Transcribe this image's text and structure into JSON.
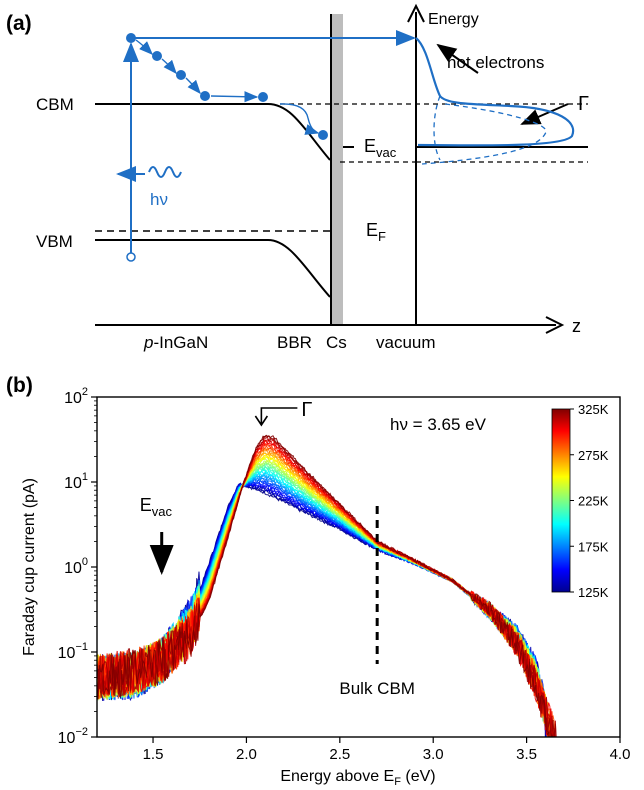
{
  "panel_a": {
    "panel_label": "(a)",
    "labels": {
      "energy": "Energy",
      "hot_electrons": "hot electrons",
      "gamma": "Γ",
      "cbm": "CBM",
      "vbm": "VBM",
      "hv": "hν",
      "evac_main": "E",
      "evac_sub": "vac",
      "ef_main": "E",
      "ef_sub": "F",
      "p_prefix": "p",
      "ingan": "-InGaN",
      "bbr": "BBR",
      "cs": "Cs",
      "vacuum": "vacuum",
      "z_axis": "z"
    },
    "colors": {
      "electron": "#1f6fc5",
      "ink": "#000000",
      "cs_layer": "#bdbdbd"
    }
  },
  "chart_data": {
    "type": "line",
    "panel_label": "(b)",
    "xlabel_main": "Energy above E",
    "xlabel_sub": "F",
    "xlabel_tail": " (eV)",
    "ylabel": "Faraday cup current (pA)",
    "y_scale": "log",
    "xlim": [
      1.2,
      4.0
    ],
    "ylim": [
      0.01,
      100
    ],
    "x_ticks": [
      1.5,
      2.0,
      2.5,
      3.0,
      3.5,
      4.0
    ],
    "x_tick_labels": [
      "1.5",
      "2.0",
      "2.5",
      "3.0",
      "3.5",
      "4.0"
    ],
    "y_ticks": [
      0.01,
      0.1,
      1,
      10,
      100
    ],
    "y_tick_labels": [
      {
        "base": "10",
        "exp": "−2"
      },
      {
        "base": "10",
        "exp": "−1"
      },
      {
        "base": "10",
        "exp": "0"
      },
      {
        "base": "10",
        "exp": "1"
      },
      {
        "base": "10",
        "exp": "2"
      }
    ],
    "annotation_photon": "hν = 3.65 eV",
    "annotation_gamma": "Γ",
    "annotation_evac_main": "E",
    "annotation_evac_sub": "vac",
    "annotation_bulk_cbm": "Bulk CBM",
    "bulk_cbm_x": 2.7,
    "evac_arrow_x": 1.6,
    "gamma_arrow_x": 2.08,
    "colormap": "jet",
    "colorbar": {
      "labels": [
        "325K",
        "275K",
        "225K",
        "175K",
        "125K"
      ],
      "range": [
        125,
        325
      ]
    },
    "series_temperature_range": [
      125,
      325
    ],
    "series_count": 41,
    "cold_curve": {
      "temperature": 125,
      "points": [
        [
          1.2,
          0.05
        ],
        [
          1.4,
          0.05
        ],
        [
          1.55,
          0.08
        ],
        [
          1.7,
          0.25
        ],
        [
          1.82,
          1.5
        ],
        [
          1.9,
          5
        ],
        [
          1.96,
          9.5
        ],
        [
          2.0,
          9
        ],
        [
          2.1,
          7.5
        ],
        [
          2.3,
          4.5
        ],
        [
          2.5,
          2.8
        ],
        [
          2.7,
          1.6
        ],
        [
          2.9,
          1.1
        ],
        [
          3.1,
          0.7
        ],
        [
          3.3,
          0.3
        ],
        [
          3.45,
          0.15
        ],
        [
          3.55,
          0.06
        ],
        [
          3.6,
          0.02
        ],
        [
          3.62,
          0.01
        ]
      ]
    },
    "hot_curve": {
      "temperature": 325,
      "points": [
        [
          1.2,
          0.05
        ],
        [
          1.4,
          0.06
        ],
        [
          1.55,
          0.08
        ],
        [
          1.7,
          0.15
        ],
        [
          1.8,
          0.4
        ],
        [
          1.9,
          2.2
        ],
        [
          1.98,
          9
        ],
        [
          2.05,
          25
        ],
        [
          2.1,
          36
        ],
        [
          2.15,
          33
        ],
        [
          2.3,
          15
        ],
        [
          2.5,
          5.5
        ],
        [
          2.7,
          2.0
        ],
        [
          2.9,
          1.2
        ],
        [
          3.1,
          0.7
        ],
        [
          3.3,
          0.32
        ],
        [
          3.45,
          0.12
        ],
        [
          3.55,
          0.04
        ],
        [
          3.62,
          0.015
        ],
        [
          3.65,
          0.01
        ]
      ]
    }
  }
}
